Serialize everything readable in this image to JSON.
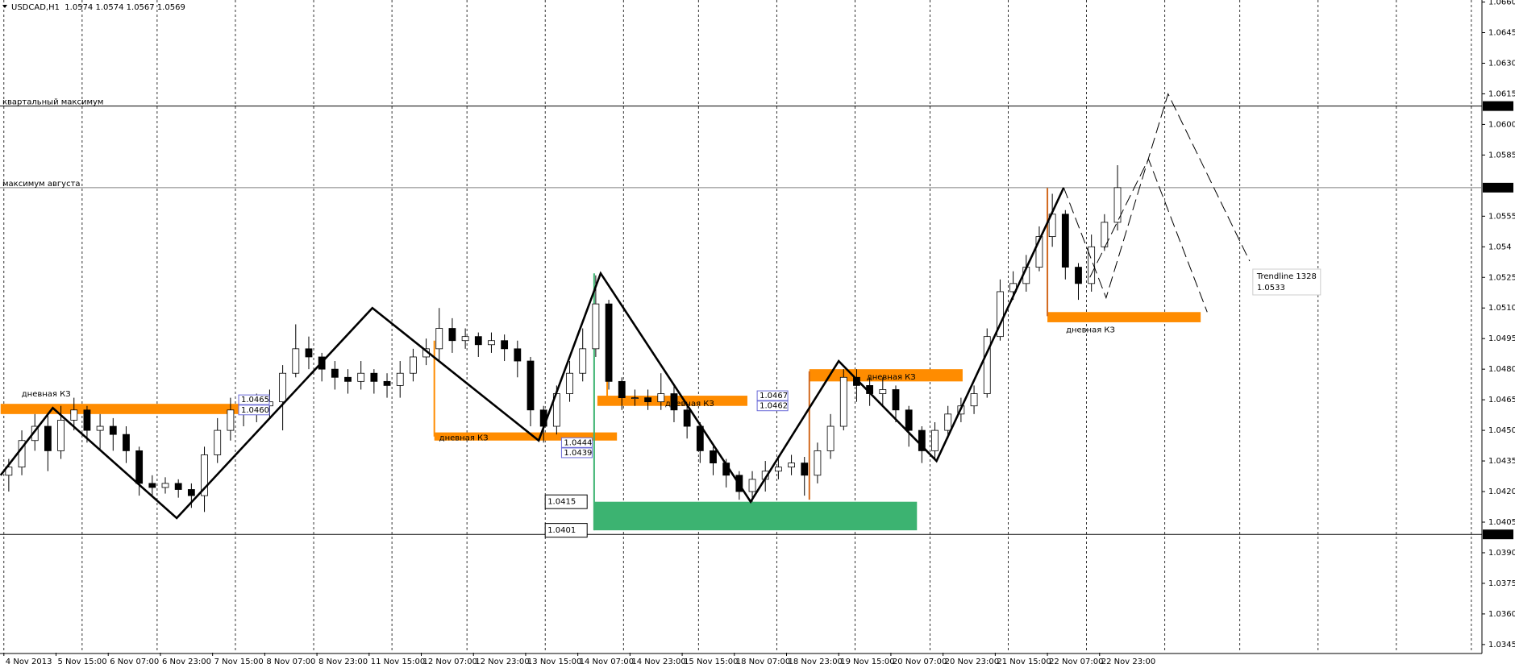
{
  "title": "USDCAD,H1  1.0574 1.0574 1.0567 1.0569",
  "chart_data": {
    "type": "candlestick",
    "up_color": "#ffffff",
    "down_color": "#000000",
    "wick_color": "#000000",
    "ohlc": [
      [
        1.0428,
        1.0436,
        1.042,
        1.0432
      ],
      [
        1.0432,
        1.045,
        1.0428,
        1.0445
      ],
      [
        1.0445,
        1.0458,
        1.044,
        1.0452
      ],
      [
        1.0452,
        1.0458,
        1.043,
        1.044
      ],
      [
        1.044,
        1.0462,
        1.0436,
        1.0455
      ],
      [
        1.0455,
        1.0466,
        1.045,
        1.046
      ],
      [
        1.046,
        1.0462,
        1.0444,
        1.045
      ],
      [
        1.045,
        1.0458,
        1.044,
        1.0452
      ],
      [
        1.0452,
        1.0456,
        1.044,
        1.0448
      ],
      [
        1.0448,
        1.0452,
        1.0434,
        1.044
      ],
      [
        1.044,
        1.0442,
        1.0418,
        1.0424
      ],
      [
        1.0424,
        1.0428,
        1.0418,
        1.0422
      ],
      [
        1.0422,
        1.0427,
        1.0419,
        1.0424
      ],
      [
        1.0424,
        1.0426,
        1.0417,
        1.0421
      ],
      [
        1.0421,
        1.0424,
        1.0412,
        1.0418
      ],
      [
        1.0418,
        1.0442,
        1.041,
        1.0438
      ],
      [
        1.0438,
        1.0456,
        1.0434,
        1.045
      ],
      [
        1.045,
        1.0466,
        1.0445,
        1.046
      ],
      [
        1.046,
        1.0466,
        1.0452,
        1.0458
      ],
      [
        1.0458,
        1.0468,
        1.0454,
        1.0462
      ],
      [
        1.0462,
        1.047,
        1.0456,
        1.0464
      ],
      [
        1.0464,
        1.0482,
        1.045,
        1.0478
      ],
      [
        1.0478,
        1.0502,
        1.0476,
        1.049
      ],
      [
        1.049,
        1.0496,
        1.048,
        1.0486
      ],
      [
        1.0486,
        1.0488,
        1.0474,
        1.048
      ],
      [
        1.048,
        1.0484,
        1.047,
        1.0476
      ],
      [
        1.0476,
        1.048,
        1.0468,
        1.0474
      ],
      [
        1.0474,
        1.0484,
        1.047,
        1.0478
      ],
      [
        1.0478,
        1.048,
        1.0468,
        1.0474
      ],
      [
        1.0474,
        1.0478,
        1.0466,
        1.0472
      ],
      [
        1.0472,
        1.0484,
        1.0466,
        1.0478
      ],
      [
        1.0478,
        1.049,
        1.0474,
        1.0486
      ],
      [
        1.0486,
        1.0495,
        1.0482,
        1.049
      ],
      [
        1.049,
        1.051,
        1.0484,
        1.05
      ],
      [
        1.05,
        1.0505,
        1.0488,
        1.0494
      ],
      [
        1.0494,
        1.05,
        1.049,
        1.0496
      ],
      [
        1.0496,
        1.0498,
        1.0486,
        1.0492
      ],
      [
        1.0492,
        1.0498,
        1.0488,
        1.0494
      ],
      [
        1.0494,
        1.0497,
        1.0484,
        1.049
      ],
      [
        1.049,
        1.0494,
        1.0476,
        1.0484
      ],
      [
        1.0484,
        1.0486,
        1.0452,
        1.046
      ],
      [
        1.046,
        1.0462,
        1.0444,
        1.0452
      ],
      [
        1.0452,
        1.0472,
        1.0448,
        1.0468
      ],
      [
        1.0468,
        1.0484,
        1.0464,
        1.0478
      ],
      [
        1.0478,
        1.05,
        1.0474,
        1.049
      ],
      [
        1.049,
        1.0526,
        1.0486,
        1.0512
      ],
      [
        1.0512,
        1.0514,
        1.047,
        1.0474
      ],
      [
        1.0474,
        1.0476,
        1.046,
        1.0466
      ],
      [
        1.0466,
        1.047,
        1.0462,
        1.0466
      ],
      [
        1.0466,
        1.047,
        1.046,
        1.0464
      ],
      [
        1.0464,
        1.0478,
        1.046,
        1.0468
      ],
      [
        1.0468,
        1.0472,
        1.0454,
        1.046
      ],
      [
        1.046,
        1.0462,
        1.0446,
        1.0452
      ],
      [
        1.0452,
        1.0454,
        1.0434,
        1.044
      ],
      [
        1.044,
        1.0442,
        1.0428,
        1.0434
      ],
      [
        1.0434,
        1.0436,
        1.0422,
        1.0428
      ],
      [
        1.0428,
        1.043,
        1.0416,
        1.042
      ],
      [
        1.042,
        1.043,
        1.0415,
        1.0426
      ],
      [
        1.0426,
        1.0435,
        1.042,
        1.043
      ],
      [
        1.043,
        1.0436,
        1.0426,
        1.0432
      ],
      [
        1.0432,
        1.0438,
        1.0428,
        1.0434
      ],
      [
        1.0434,
        1.0437,
        1.0418,
        1.0428
      ],
      [
        1.0428,
        1.0444,
        1.0424,
        1.044
      ],
      [
        1.044,
        1.0458,
        1.0436,
        1.0452
      ],
      [
        1.0452,
        1.048,
        1.045,
        1.0476
      ],
      [
        1.0476,
        1.048,
        1.0464,
        1.0472
      ],
      [
        1.0472,
        1.0476,
        1.0462,
        1.0468
      ],
      [
        1.0468,
        1.0476,
        1.0462,
        1.047
      ],
      [
        1.047,
        1.0472,
        1.0454,
        1.046
      ],
      [
        1.046,
        1.0462,
        1.0442,
        1.045
      ],
      [
        1.045,
        1.0452,
        1.0434,
        1.044
      ],
      [
        1.044,
        1.0454,
        1.0436,
        1.045
      ],
      [
        1.045,
        1.0462,
        1.0446,
        1.0458
      ],
      [
        1.0458,
        1.0466,
        1.0454,
        1.0462
      ],
      [
        1.0462,
        1.0472,
        1.0458,
        1.0468
      ],
      [
        1.0468,
        1.05,
        1.0466,
        1.0496
      ],
      [
        1.0496,
        1.0524,
        1.0494,
        1.0518
      ],
      [
        1.0518,
        1.0528,
        1.0514,
        1.0522
      ],
      [
        1.0522,
        1.0536,
        1.0518,
        1.053
      ],
      [
        1.053,
        1.055,
        1.0528,
        1.0545
      ],
      [
        1.0545,
        1.0566,
        1.054,
        1.0556
      ],
      [
        1.0556,
        1.0558,
        1.0524,
        1.053
      ],
      [
        1.053,
        1.0532,
        1.0514,
        1.0522
      ],
      [
        1.0522,
        1.0546,
        1.0518,
        1.054
      ],
      [
        1.054,
        1.0556,
        1.0538,
        1.0552
      ],
      [
        1.0552,
        1.058,
        1.0548,
        1.0569
      ]
    ],
    "xlim": [
      0,
      453
    ],
    "xticks": [
      {
        "value": 0,
        "label": "4 Nov 2013"
      },
      {
        "value": 16,
        "label": "5 Nov 15:00"
      },
      {
        "value": 32,
        "label": "6 Nov 07:00"
      },
      {
        "value": 48,
        "label": "6 Nov 23:00"
      },
      {
        "value": 64,
        "label": "7 Nov 15:00"
      },
      {
        "value": 80,
        "label": "8 Nov 07:00"
      },
      {
        "value": 96,
        "label": "8 Nov 23:00"
      },
      {
        "value": 112,
        "label": "11 Nov 15:00"
      },
      {
        "value": 128,
        "label": "12 Nov 07:00"
      },
      {
        "value": 144,
        "label": "12 Nov 23:00"
      },
      {
        "value": 160,
        "label": "13 Nov 15:00"
      },
      {
        "value": 176,
        "label": "14 Nov 07:00"
      },
      {
        "value": 192,
        "label": "14 Nov 23:00"
      },
      {
        "value": 208,
        "label": "15 Nov 15:00"
      },
      {
        "value": 224,
        "label": "18 Nov 07:00"
      },
      {
        "value": 240,
        "label": "18 Nov 23:00"
      },
      {
        "value": 256,
        "label": "19 Nov 15:00"
      },
      {
        "value": 272,
        "label": "20 Nov 07:00"
      },
      {
        "value": 288,
        "label": "20 Nov 23:00"
      },
      {
        "value": 304,
        "label": "21 Nov 15:00"
      },
      {
        "value": 320,
        "label": "22 Nov 07:00"
      },
      {
        "value": 336,
        "label": "22 Nov 23:00"
      }
    ],
    "xgrid": [
      0,
      24,
      47,
      71,
      95,
      119,
      142,
      166,
      190,
      213,
      237,
      261,
      284,
      308,
      332,
      356,
      379,
      403,
      427,
      450
    ],
    "ylim": [
      1.0341,
      1.0661
    ],
    "yticks": [
      {
        "value": 1.066,
        "label": "1.0660"
      },
      1.0645,
      {
        "value": 1.063,
        "label": "1.0630"
      },
      1.0615,
      {
        "value": 1.06,
        "label": "1.0600"
      },
      1.0585,
      1.0555,
      1.054,
      1.0525,
      {
        "value": 1.051,
        "label": "1.0510"
      },
      1.0495,
      {
        "value": 1.048,
        "label": "1.0480"
      },
      1.0465,
      {
        "value": 1.045,
        "label": "1.0450"
      },
      1.0435,
      {
        "value": 1.042,
        "label": "1.0420"
      },
      1.0405,
      {
        "value": 1.039,
        "label": "1.0390"
      },
      1.0375,
      {
        "value": 1.036,
        "label": "1.0360"
      },
      1.0345
    ],
    "hlines": [
      {
        "value": 1.0609,
        "label": "квартальный максимум",
        "color": "#000000"
      },
      {
        "value": 1.0569,
        "label": "максимум августа",
        "color": "#808080"
      },
      {
        "value": 1.0399,
        "color": "#000000"
      }
    ],
    "zones": [
      {
        "x": [
          -1,
          72
        ],
        "y": [
          1.0458,
          1.0463
        ],
        "color": "#ff8c00",
        "label": "дневная КЗ"
      },
      {
        "x": [
          132,
          188
        ],
        "y": [
          1.0445,
          1.0449
        ],
        "color": "#ff8c00",
        "label": "дневная КЗ"
      },
      {
        "x": [
          182,
          228
        ],
        "y": [
          1.0462,
          1.0467
        ],
        "color": "#ff8c00",
        "label": "дневная КЗ"
      },
      {
        "x": [
          247,
          294
        ],
        "y": [
          1.0474,
          1.048
        ],
        "color": "#ff8c00",
        "label": "дневная КЗ"
      },
      {
        "x": [
          320,
          367
        ],
        "y": [
          1.0503,
          1.0508
        ],
        "color": "#ff8c00",
        "label": "дневная КЗ"
      },
      {
        "x": [
          181,
          280
        ],
        "y": [
          1.0401,
          1.0415
        ],
        "color": "#3cb371"
      }
    ],
    "vlines": [
      {
        "x": 132,
        "y": [
          1.0447,
          1.0494
        ],
        "color": "#ff8c00"
      },
      {
        "x": 185,
        "y": [
          1.0466,
          1.0509
        ],
        "color": "#ff8c00"
      },
      {
        "x": 247,
        "y": [
          1.0416,
          1.0479
        ],
        "color": "#d2691e"
      },
      {
        "x": 320,
        "y": [
          1.0506,
          1.0569
        ],
        "color": "#d2691e"
      },
      {
        "x": 181,
        "y": [
          1.0401,
          1.0527
        ],
        "color": "#3cb371"
      }
    ],
    "tags": [
      {
        "x": 72,
        "value": 1.0465,
        "color": "#1c1cc8"
      },
      {
        "x": 72,
        "value": 1.046,
        "label": "1.0460",
        "color": "#1c1cc8"
      },
      {
        "x": 171,
        "value": 1.0444,
        "color": "#1c1cc8"
      },
      {
        "x": 171,
        "value": 1.0439,
        "color": "#1c1cc8"
      },
      {
        "x": 231,
        "value": 1.0467,
        "color": "#1c1cc8"
      },
      {
        "x": 231,
        "value": 1.0462,
        "color": "#1c1cc8"
      },
      {
        "x": 166,
        "value": 1.0415,
        "color": "#000000"
      },
      {
        "x": 166,
        "value": 1.0401,
        "color": "#000000"
      }
    ],
    "zigzag": {
      "x": [
        -1,
        15,
        53,
        113,
        164,
        183,
        229,
        256,
        286,
        325
      ],
      "y": [
        1.0428,
        1.0461,
        1.0407,
        1.051,
        1.0445,
        1.0527,
        1.0415,
        1.0484,
        1.0435,
        1.0569
      ]
    },
    "forecasts": [
      {
        "x": [
          325,
          338,
          357,
          382
        ],
        "y": [
          1.0569,
          1.0515,
          1.0615,
          1.0533
        ]
      },
      {
        "x": [
          333,
          351,
          369
        ],
        "y": [
          1.0525,
          1.0583,
          1.0508
        ]
      }
    ],
    "tooltip": {
      "name": "Trendline 1328",
      "value": 1.0533
    }
  }
}
